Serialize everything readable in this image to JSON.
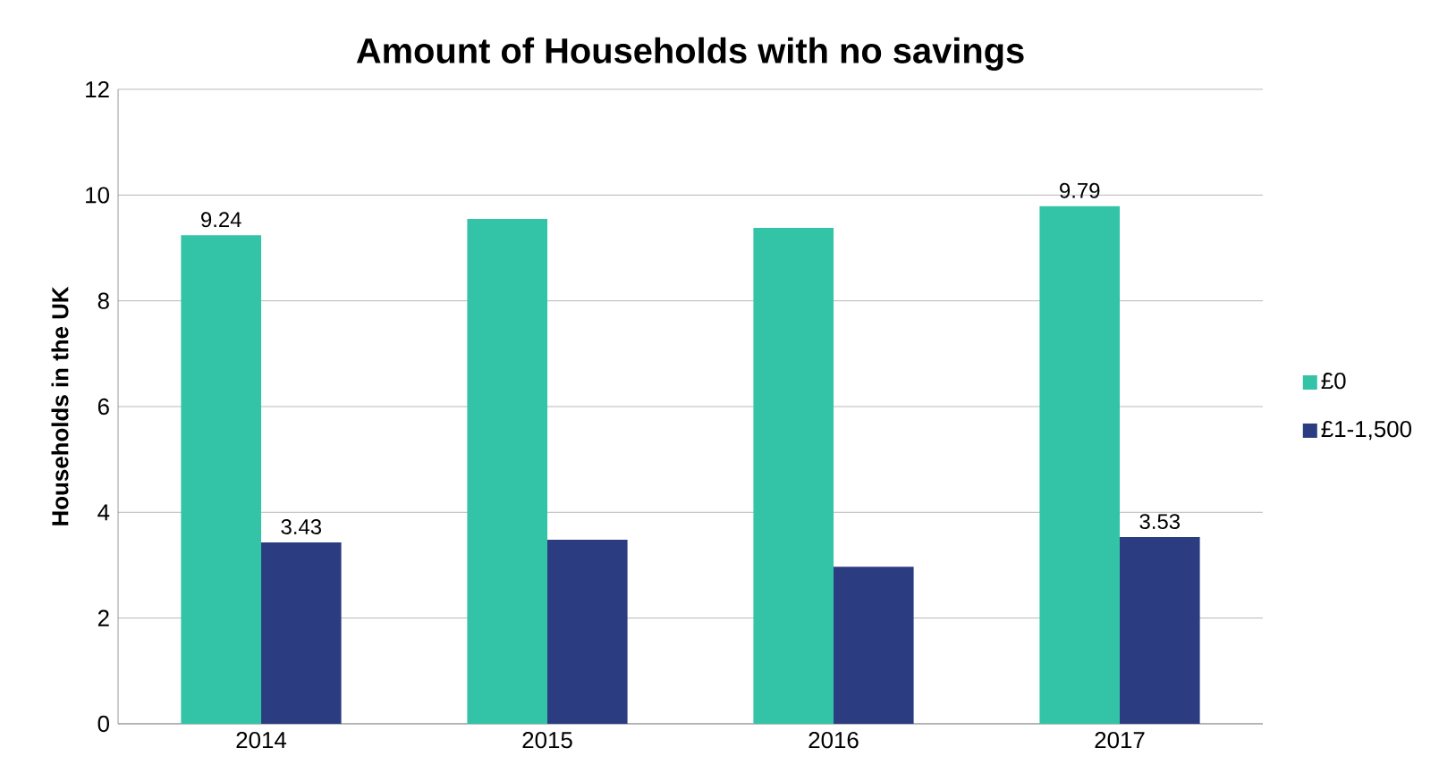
{
  "chart_data": {
    "type": "bar",
    "title": "Amount of Households with no savings",
    "ylabel": "Households in the UK",
    "categories": [
      "2014",
      "2015",
      "2016",
      "2017"
    ],
    "series": [
      {
        "name": "£0",
        "color": "#33c3a6",
        "values": [
          9.24,
          9.55,
          9.38,
          9.79
        ],
        "value_labels": [
          "9.24",
          null,
          null,
          "9.79"
        ]
      },
      {
        "name": "£1-1,500",
        "color": "#2b3d80",
        "values": [
          3.43,
          3.48,
          2.97,
          3.53
        ],
        "value_labels": [
          "3.43",
          null,
          null,
          "3.53"
        ]
      }
    ],
    "ylim": [
      0,
      12
    ],
    "yticks": [
      0,
      2,
      4,
      6,
      8,
      10,
      12
    ],
    "grid": "y",
    "legend": "right"
  }
}
